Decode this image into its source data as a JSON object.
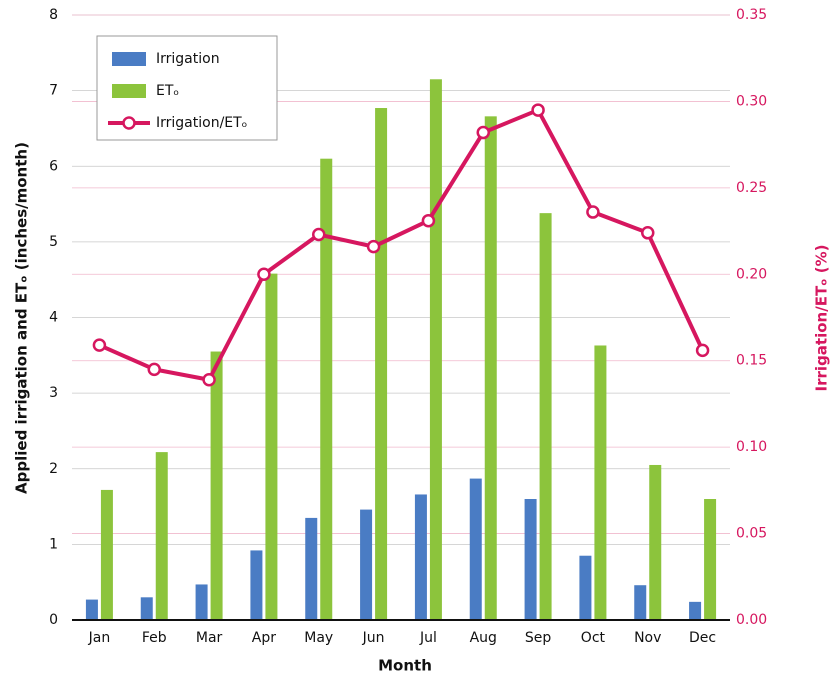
{
  "chart_data": {
    "type": "bar",
    "x_label": "Month",
    "y_label": "Applied irrigation and ETₒ (inches/month)",
    "y2_label": "Irrigation/ETₒ (%)",
    "categories": [
      "Jan",
      "Feb",
      "Mar",
      "Apr",
      "May",
      "Jun",
      "Jul",
      "Aug",
      "Sep",
      "Oct",
      "Nov",
      "Dec"
    ],
    "series": [
      {
        "name": "Irrigation",
        "type": "bar",
        "color": "#4a7cc4",
        "values": [
          0.27,
          0.3,
          0.47,
          0.92,
          1.35,
          1.46,
          1.66,
          1.87,
          1.6,
          0.85,
          0.46,
          0.24
        ]
      },
      {
        "name": "ETₒ",
        "type": "bar",
        "color": "#8cc43c",
        "values": [
          1.72,
          2.22,
          3.55,
          4.58,
          6.1,
          6.77,
          7.15,
          6.66,
          5.38,
          3.63,
          2.05,
          1.6
        ]
      },
      {
        "name": "Irrigation/ETₒ",
        "type": "line",
        "axis": "y2",
        "color": "#d6175f",
        "values": [
          0.159,
          0.145,
          0.139,
          0.2,
          0.223,
          0.216,
          0.231,
          0.282,
          0.295,
          0.236,
          0.224,
          0.156
        ]
      }
    ],
    "ylim": [
      0,
      8
    ],
    "yticks": [
      0,
      1,
      2,
      3,
      4,
      5,
      6,
      7,
      8
    ],
    "y2lim": [
      0,
      0.35
    ],
    "y2ticks": [
      {
        "value": 0,
        "label": "0.00"
      },
      {
        "value": 0.05,
        "label": "0.05"
      },
      {
        "value": 0.1,
        "label": "0.10"
      },
      {
        "value": 0.15,
        "label": "0.15"
      },
      {
        "value": 0.2,
        "label": "0.20"
      },
      {
        "value": 0.25,
        "label": "0.25"
      },
      {
        "value": 0.3,
        "label": "0.30"
      },
      {
        "value": 0.35,
        "label": "0.35"
      }
    ],
    "grid": true,
    "legend": "upper left"
  }
}
